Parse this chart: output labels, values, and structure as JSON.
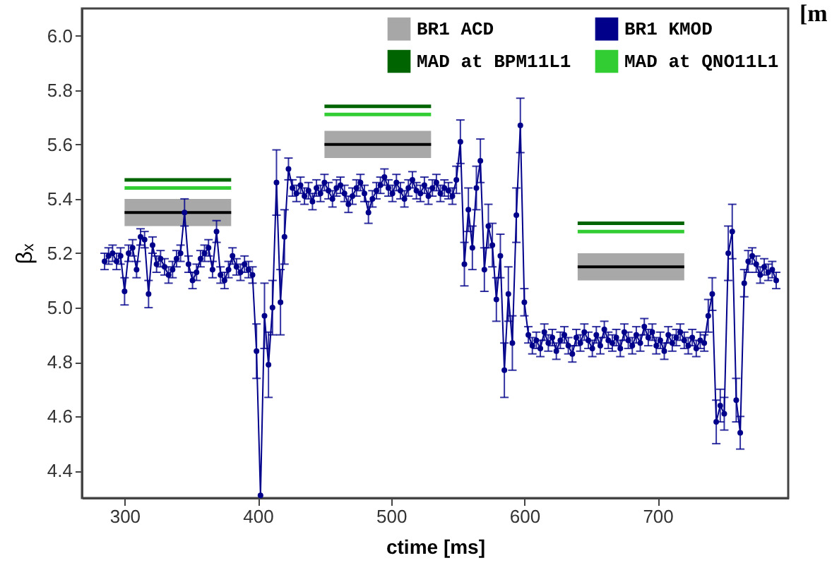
{
  "chart_data": {
    "type": "line",
    "xlabel": "ctime [ms]",
    "ylabel": "βₓ",
    "xlim": [
      268,
      798
    ],
    "ylim": [
      4.3,
      6.1
    ],
    "xticks": [
      300,
      400,
      500,
      600,
      700
    ],
    "yticks": [
      4.4,
      4.6,
      4.8,
      {
        "value": 5,
        "label": "5.0"
      },
      5.2,
      5.4,
      5.6,
      5.8,
      {
        "value": 6,
        "label": "6.0"
      }
    ],
    "grid": false,
    "legend": "top right",
    "annotations": [
      "[m"
    ],
    "series": [
      {
        "name": "BR1 ACD",
        "color": "#000000",
        "x": [
          300,
          380
        ],
        "values": [
          5.35,
          5.35
        ],
        "lower": [
          5.3,
          5.3
        ],
        "upper": [
          5.4,
          5.4
        ]
      },
      {
        "color": "#000000",
        "x": [
          450,
          530
        ],
        "values": [
          5.6,
          5.6
        ],
        "lower": [
          5.55,
          5.55
        ],
        "upper": [
          5.65,
          5.65
        ]
      },
      {
        "color": "#000000",
        "x": [
          640,
          720
        ],
        "values": [
          5.15,
          5.15
        ],
        "lower": [
          5.1,
          5.1
        ],
        "upper": [
          5.2,
          5.2
        ]
      },
      {
        "name": "MAD at BPM11L1",
        "color": "#006400",
        "x": [
          300,
          380
        ],
        "values": [
          5.47,
          5.47
        ]
      },
      {
        "color": "#006400",
        "x": [
          450,
          530
        ],
        "values": [
          5.74,
          5.74
        ]
      },
      {
        "color": "#006400",
        "x": [
          640,
          720
        ],
        "values": [
          5.31,
          5.31
        ]
      },
      {
        "name": "BR1 KMOD",
        "color": "#00008b",
        "marker": "circle",
        "x": [
          285,
          288,
          291,
          294,
          297,
          300,
          303,
          306,
          309,
          312,
          315,
          318,
          321,
          324,
          327,
          330,
          333,
          336,
          339,
          342,
          345,
          348,
          351,
          354,
          357,
          360,
          363,
          366,
          369,
          372,
          375,
          378,
          381,
          384,
          387,
          390,
          393,
          396,
          399,
          402,
          405,
          408,
          411,
          414,
          417,
          420,
          423,
          426,
          429,
          432,
          435,
          438,
          441,
          444,
          447,
          450,
          453,
          456,
          459,
          462,
          465,
          468,
          471,
          474,
          477,
          480,
          483,
          486,
          489,
          492,
          495,
          498,
          501,
          504,
          507,
          510,
          513,
          516,
          519,
          522,
          525,
          528,
          531,
          534,
          537,
          540,
          543,
          546,
          549,
          552,
          555,
          558,
          561,
          564,
          567,
          570,
          573,
          576,
          579,
          582,
          585,
          588,
          591,
          594,
          597,
          600,
          603,
          606,
          609,
          612,
          615,
          618,
          621,
          624,
          627,
          630,
          633,
          636,
          639,
          642,
          645,
          648,
          651,
          654,
          657,
          660,
          663,
          666,
          669,
          672,
          675,
          678,
          681,
          684,
          687,
          690,
          693,
          696,
          699,
          702,
          705,
          708,
          711,
          714,
          717,
          720,
          723,
          726,
          729,
          732,
          735,
          738,
          741,
          744,
          747,
          750,
          753,
          756,
          759,
          762,
          765,
          768,
          771,
          774,
          777,
          780,
          783,
          786,
          789
        ],
        "values": [
          5.17,
          5.19,
          5.2,
          5.17,
          5.19,
          5.06,
          5.2,
          5.22,
          5.14,
          5.26,
          5.25,
          5.05,
          5.23,
          5.16,
          5.18,
          5.15,
          5.12,
          5.14,
          5.18,
          5.2,
          5.35,
          5.16,
          5.1,
          5.13,
          5.18,
          5.2,
          5.22,
          5.14,
          5.28,
          5.12,
          5.1,
          5.14,
          5.19,
          5.15,
          5.13,
          5.16,
          5.14,
          5.12,
          4.84,
          4.31,
          4.97,
          4.79,
          5.0,
          5.46,
          5.02,
          5.26,
          5.51,
          5.44,
          5.42,
          5.45,
          5.41,
          5.43,
          5.39,
          5.44,
          5.42,
          5.46,
          5.43,
          5.4,
          5.44,
          5.45,
          5.42,
          5.38,
          5.41,
          5.44,
          5.46,
          5.42,
          5.35,
          5.4,
          5.43,
          5.45,
          5.48,
          5.44,
          5.42,
          5.46,
          5.43,
          5.4,
          5.44,
          5.47,
          5.43,
          5.42,
          5.45,
          5.41,
          5.44,
          5.46,
          5.42,
          5.44,
          5.43,
          5.41,
          5.47,
          5.61,
          5.16,
          5.36,
          5.22,
          5.44,
          5.54,
          5.14,
          5.3,
          5.23,
          5.03,
          5.19,
          4.77,
          5.05,
          4.87,
          5.34,
          5.67,
          5.02,
          4.9,
          4.86,
          4.88,
          4.85,
          4.91,
          4.87,
          4.89,
          4.84,
          4.88,
          4.9,
          4.86,
          4.83,
          4.89,
          4.87,
          4.91,
          4.88,
          4.85,
          4.9,
          4.86,
          4.92,
          4.88,
          4.87,
          4.89,
          4.85,
          4.91,
          4.88,
          4.86,
          4.9,
          4.87,
          4.93,
          4.89,
          4.91,
          4.86,
          4.88,
          4.84,
          4.9,
          4.87,
          4.89,
          4.91,
          4.88,
          4.86,
          4.89,
          4.85,
          4.88,
          4.87,
          4.97,
          5.05,
          4.58,
          4.64,
          4.61,
          5.2,
          5.28,
          4.66,
          4.54,
          5.09,
          5.17,
          5.19,
          5.16,
          5.12,
          5.15,
          5.13,
          5.14,
          5.1
        ],
        "errors": [
          0.03,
          0.03,
          0.03,
          0.03,
          0.03,
          0.05,
          0.03,
          0.03,
          0.03,
          0.03,
          0.03,
          0.05,
          0.03,
          0.03,
          0.03,
          0.03,
          0.03,
          0.03,
          0.03,
          0.03,
          0.05,
          0.03,
          0.03,
          0.03,
          0.03,
          0.03,
          0.03,
          0.03,
          0.04,
          0.03,
          0.03,
          0.03,
          0.03,
          0.03,
          0.03,
          0.03,
          0.03,
          0.03,
          0.1,
          null,
          0.12,
          0.12,
          0.1,
          0.12,
          0.12,
          0.1,
          0.04,
          0.03,
          0.03,
          0.03,
          0.03,
          0.03,
          0.03,
          0.03,
          0.03,
          0.03,
          0.03,
          0.03,
          0.03,
          0.03,
          0.03,
          0.03,
          0.03,
          0.03,
          0.03,
          0.03,
          0.04,
          0.03,
          0.03,
          0.03,
          0.03,
          0.03,
          0.03,
          0.03,
          0.03,
          0.03,
          0.03,
          0.03,
          0.03,
          0.03,
          0.03,
          0.03,
          0.03,
          0.03,
          0.03,
          0.03,
          0.03,
          0.03,
          0.05,
          0.08,
          0.08,
          0.08,
          0.08,
          0.08,
          0.08,
          0.08,
          0.08,
          0.08,
          0.08,
          0.08,
          0.1,
          0.1,
          0.1,
          0.1,
          0.1,
          0.05,
          0.03,
          0.03,
          0.03,
          0.03,
          0.03,
          0.03,
          0.03,
          0.03,
          0.03,
          0.03,
          0.03,
          0.03,
          0.03,
          0.03,
          0.03,
          0.03,
          0.03,
          0.03,
          0.03,
          0.03,
          0.03,
          0.03,
          0.03,
          0.03,
          0.03,
          0.03,
          0.03,
          0.03,
          0.03,
          0.03,
          0.03,
          0.03,
          0.03,
          0.03,
          0.03,
          0.03,
          0.03,
          0.03,
          0.03,
          0.03,
          0.03,
          0.03,
          0.03,
          0.03,
          0.03,
          0.06,
          0.06,
          0.08,
          0.06,
          0.06,
          0.1,
          0.1,
          0.08,
          0.06,
          0.05,
          0.04,
          0.03,
          0.03,
          0.03,
          0.03,
          0.03,
          0.03,
          0.03
        ]
      },
      {
        "name": "MAD at QNO11L1",
        "color": "#32cd32",
        "x": [
          300,
          380
        ],
        "values": [
          5.44,
          5.44
        ]
      },
      {
        "color": "#32cd32",
        "x": [
          450,
          530
        ],
        "values": [
          5.71,
          5.71
        ]
      },
      {
        "color": "#32cd32",
        "x": [
          640,
          720
        ],
        "values": [
          5.28,
          5.28
        ]
      }
    ]
  }
}
